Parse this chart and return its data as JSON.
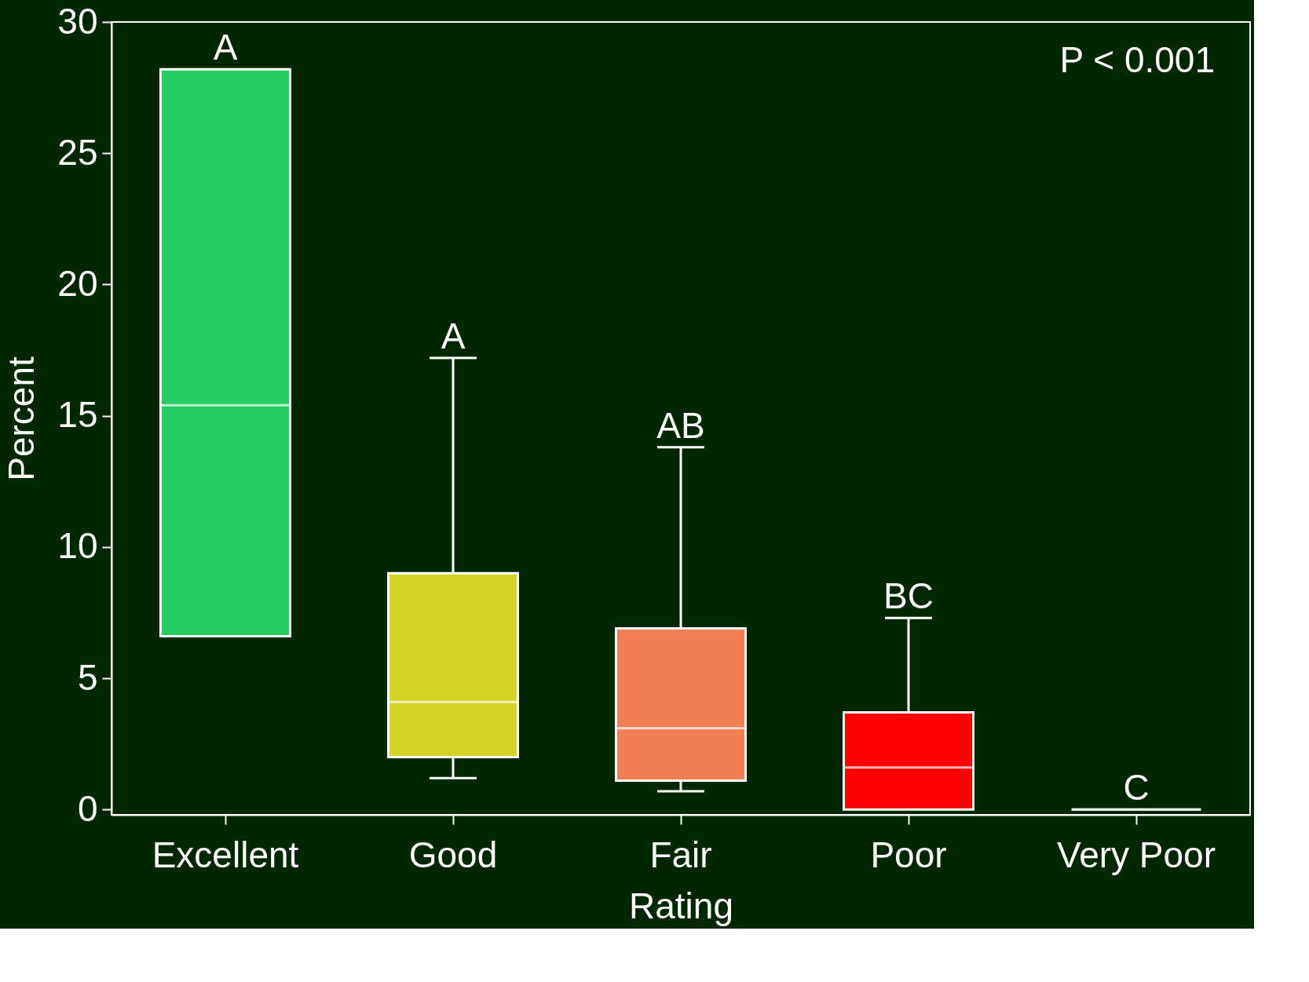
{
  "chart_data": {
    "type": "box",
    "xlabel": "Rating",
    "ylabel": "Percent",
    "categories": [
      "Excellent",
      "Good",
      "Fair",
      "Poor",
      "Very Poor"
    ],
    "colors": [
      "#26cc62",
      "#d4d424",
      "#f07f55",
      "#ff0000",
      "#ffffff"
    ],
    "boxes": [
      {
        "low": 6.6,
        "q1": 6.6,
        "median": 15.4,
        "q3": 28.2,
        "high": 28.2
      },
      {
        "low": 1.2,
        "q1": 2.0,
        "median": 4.1,
        "q3": 9.0,
        "high": 17.2
      },
      {
        "low": 0.7,
        "q1": 1.1,
        "median": 3.1,
        "q3": 6.9,
        "high": 13.8
      },
      {
        "low": 0.0,
        "q1": 0.0,
        "median": 1.6,
        "q3": 3.7,
        "high": 7.3
      },
      {
        "low": 0.0,
        "q1": 0.0,
        "median": 0.0,
        "q3": 0.0,
        "high": 0.0
      }
    ],
    "ylim": [
      -0.2,
      30
    ],
    "yticks": [
      0,
      5,
      10,
      15,
      20,
      25,
      30
    ],
    "grid": false,
    "legend": false,
    "annotations": [
      {
        "text": "A",
        "x": "Excellent",
        "y": 28.2
      },
      {
        "text": "A",
        "x": "Good",
        "y": 17.2
      },
      {
        "text": "AB",
        "x": "Fair",
        "y": 13.8
      },
      {
        "text": "BC",
        "x": "Poor",
        "y": 7.3
      },
      {
        "text": "C",
        "x": "Very Poor",
        "y": 0.0
      },
      "P < 0.001"
    ]
  }
}
